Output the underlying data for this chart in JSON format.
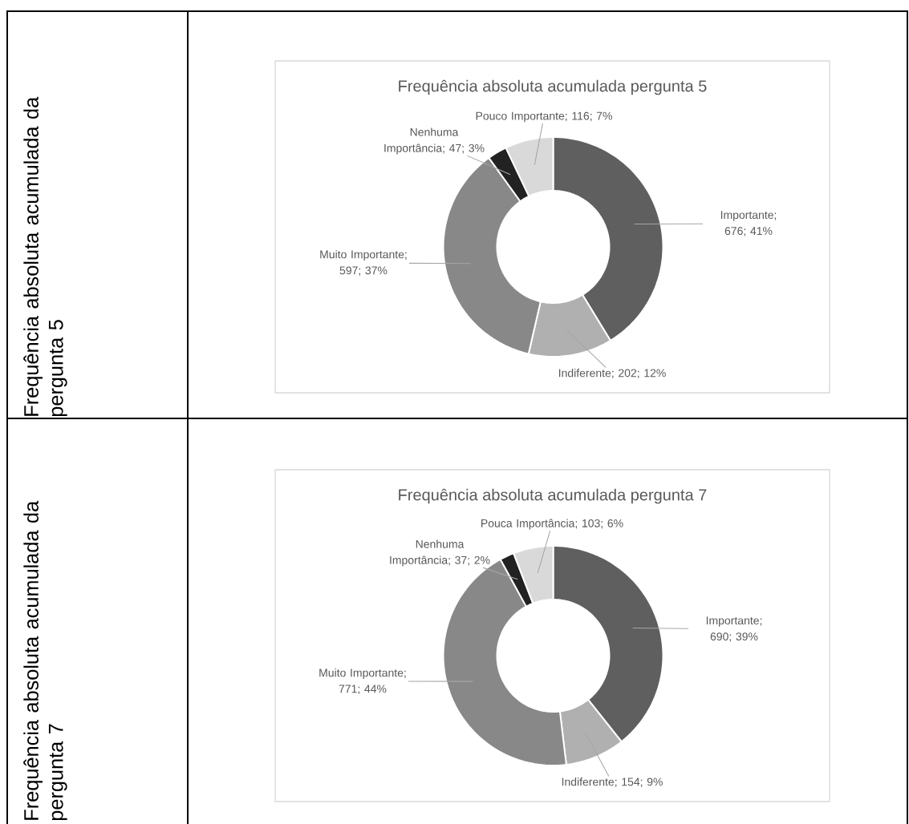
{
  "chart_data": [
    {
      "type": "donut",
      "title": "Frequência absoluta acumulada pergunta 5",
      "categories": [
        "Importante",
        "Indiferente",
        "Muito Importante",
        "Nenhuma Importância",
        "Pouco Importante"
      ],
      "values": [
        676,
        202,
        597,
        47,
        116
      ],
      "colors": [
        "#5f5f5f",
        "#b0b0b0",
        "#888888",
        "#222222",
        "#d9d9d9"
      ],
      "value_labels": [
        "; 676; 41%",
        "; 202; 12%",
        "; 597; 37%",
        "; 47; 3%",
        "; 116; 7%"
      ],
      "annotations": [
        "Frequência absoluta acumulada da pergunta 5"
      ]
    },
    {
      "type": "donut",
      "title": "Frequência absoluta acumulada pergunta 7",
      "categories": [
        "Importante",
        "Indiferente",
        "Muito Importante",
        "Nenhuma Importância",
        "Pouca Importância"
      ],
      "values": [
        690,
        154,
        771,
        37,
        103
      ],
      "colors": [
        "#5f5f5f",
        "#b0b0b0",
        "#888888",
        "#222222",
        "#d9d9d9"
      ],
      "value_labels": [
        "; 690; 39%",
        "; 154; 9%",
        "; 771; 44%",
        "; 37; 2%",
        "; 103; 6%"
      ],
      "annotations": [
        "Frequência absoluta acumulada da pergunta 7"
      ]
    }
  ]
}
